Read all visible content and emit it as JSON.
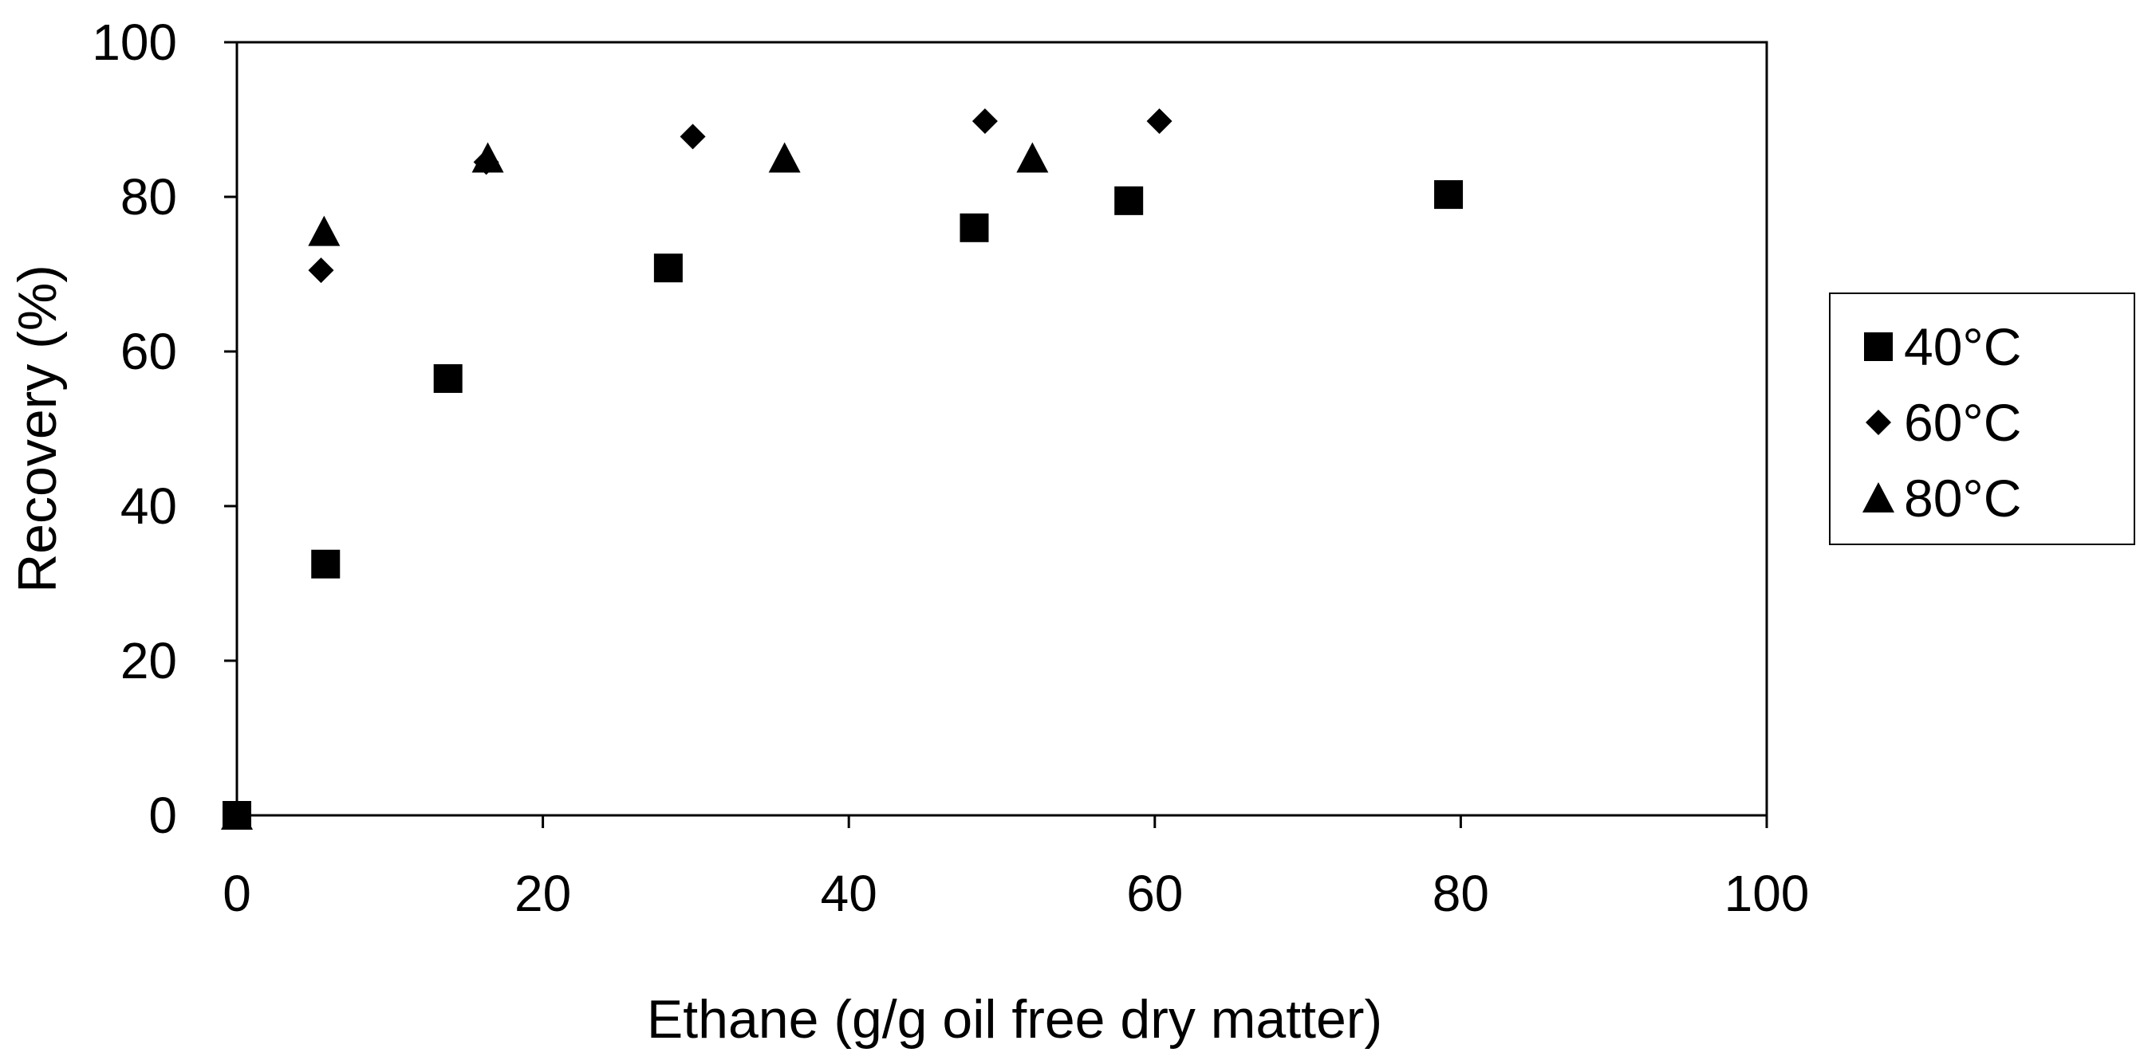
{
  "chart_data": {
    "type": "scatter",
    "title": "",
    "xlabel": "Ethane (g/g oil free dry matter)",
    "ylabel": "Recovery (%)",
    "xlim": [
      0,
      100
    ],
    "ylim": [
      0,
      100
    ],
    "xticks": [
      0,
      20,
      40,
      60,
      80,
      100
    ],
    "yticks": [
      0,
      20,
      40,
      60,
      80,
      100
    ],
    "grid": false,
    "legend": "right",
    "series": [
      {
        "name": "40°C",
        "marker": "square",
        "color": "#000000",
        "points": [
          {
            "x": 0,
            "y": 0
          },
          {
            "x": 5.8,
            "y": 32.5
          },
          {
            "x": 13.8,
            "y": 56.5
          },
          {
            "x": 28.2,
            "y": 70.8
          },
          {
            "x": 48.2,
            "y": 76.0
          },
          {
            "x": 58.3,
            "y": 79.5
          },
          {
            "x": 79.2,
            "y": 80.3
          }
        ]
      },
      {
        "name": "60°C",
        "marker": "diamond",
        "color": "#000000",
        "points": [
          {
            "x": 0,
            "y": 0
          },
          {
            "x": 5.5,
            "y": 70.5
          },
          {
            "x": 16.3,
            "y": 84.5
          },
          {
            "x": 29.8,
            "y": 87.8
          },
          {
            "x": 48.9,
            "y": 89.8
          },
          {
            "x": 60.3,
            "y": 89.8
          }
        ]
      },
      {
        "name": "80°C",
        "marker": "triangle",
        "color": "#000000",
        "points": [
          {
            "x": 0,
            "y": 0
          },
          {
            "x": 5.7,
            "y": 75.5
          },
          {
            "x": 16.4,
            "y": 85.0
          },
          {
            "x": 35.8,
            "y": 85.0
          },
          {
            "x": 52.0,
            "y": 85.0
          }
        ]
      }
    ]
  }
}
